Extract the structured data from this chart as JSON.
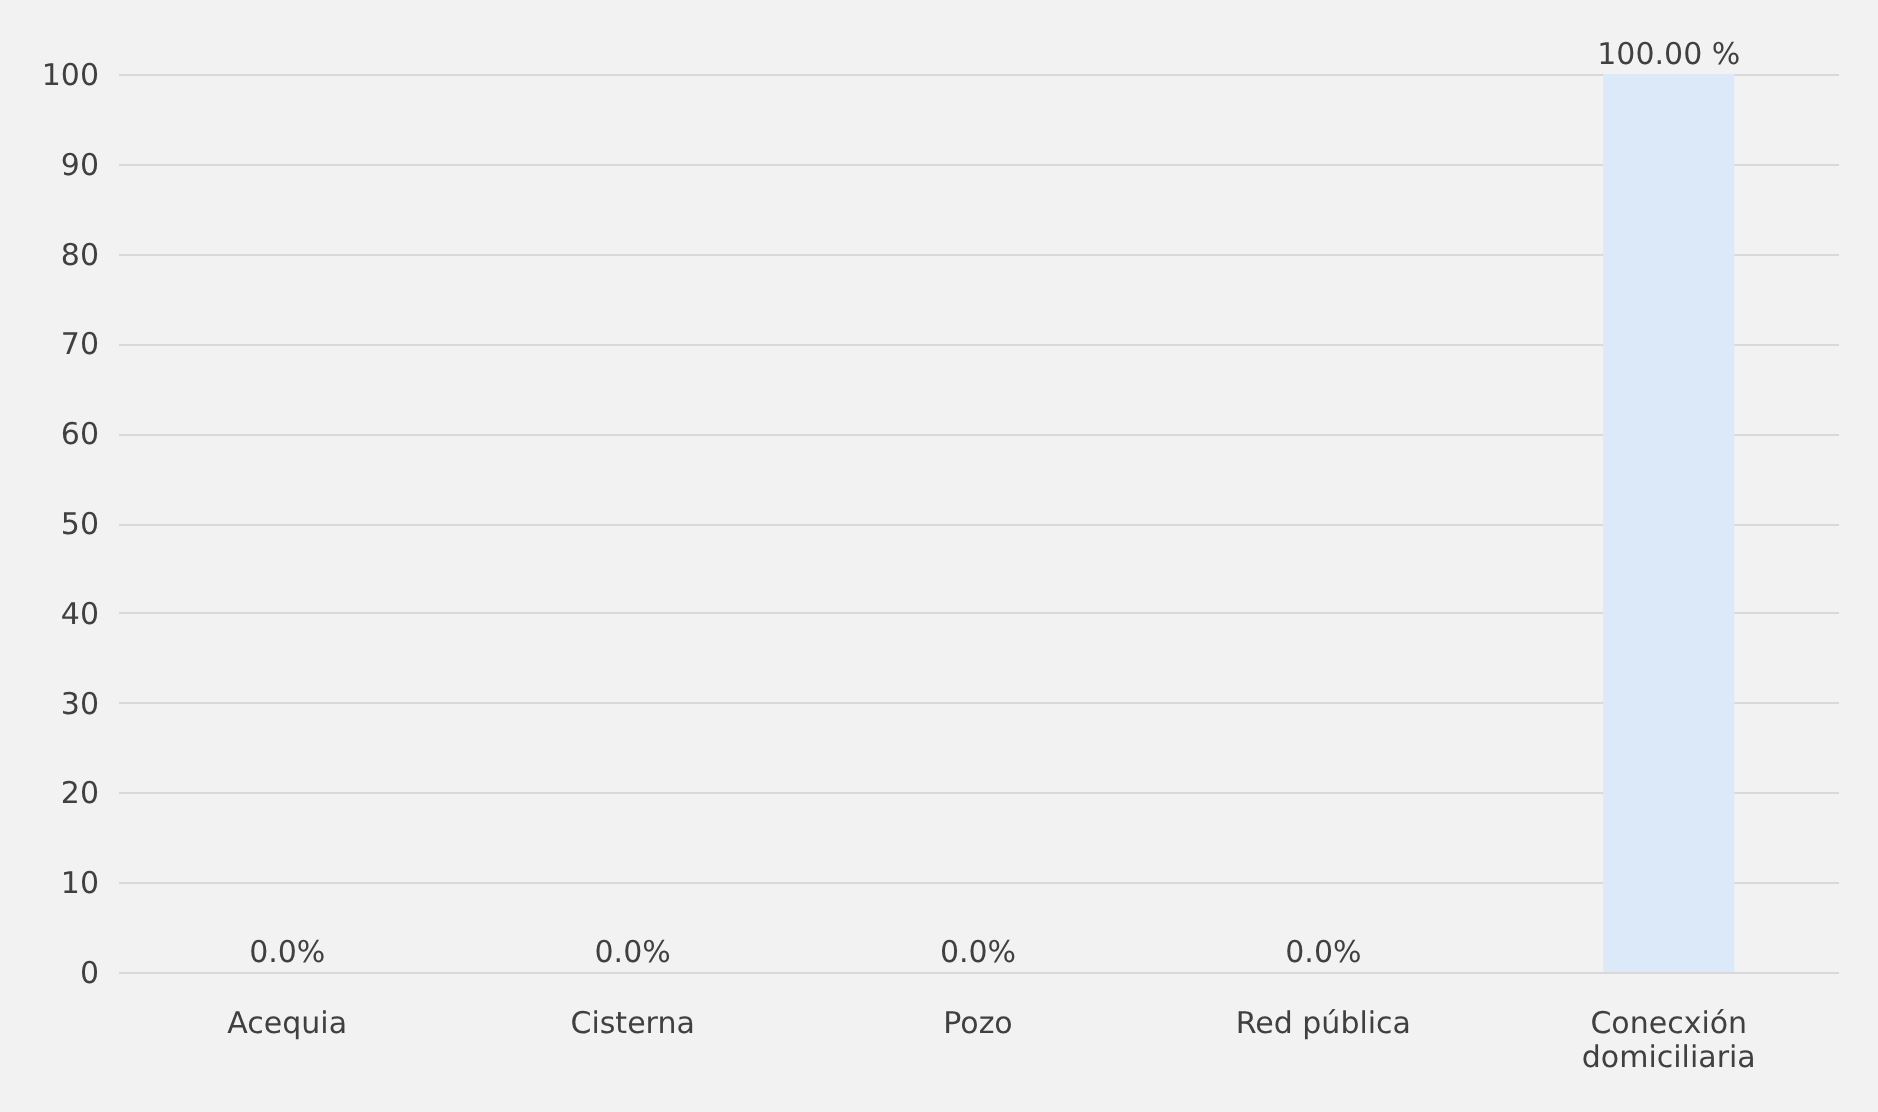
{
  "chart_data": {
    "type": "bar",
    "categories": [
      "Acequia",
      "Cisterna",
      "Pozo",
      "Red pública",
      "Conecxión domiciliaria"
    ],
    "values": [
      0,
      0,
      0,
      0,
      100
    ],
    "value_labels": [
      "0.0%",
      "0.0%",
      "0.0%",
      "0.0%",
      "100.00 %"
    ],
    "colors": [
      "#a5b4c0",
      "#a5b4c0",
      "#a5b4c0",
      "#a5b4c0",
      "#dce9f8"
    ],
    "ylim": [
      0,
      100
    ],
    "yticks": [
      0,
      10,
      20,
      30,
      40,
      50,
      60,
      70,
      80,
      90,
      100
    ],
    "grid": "y"
  }
}
